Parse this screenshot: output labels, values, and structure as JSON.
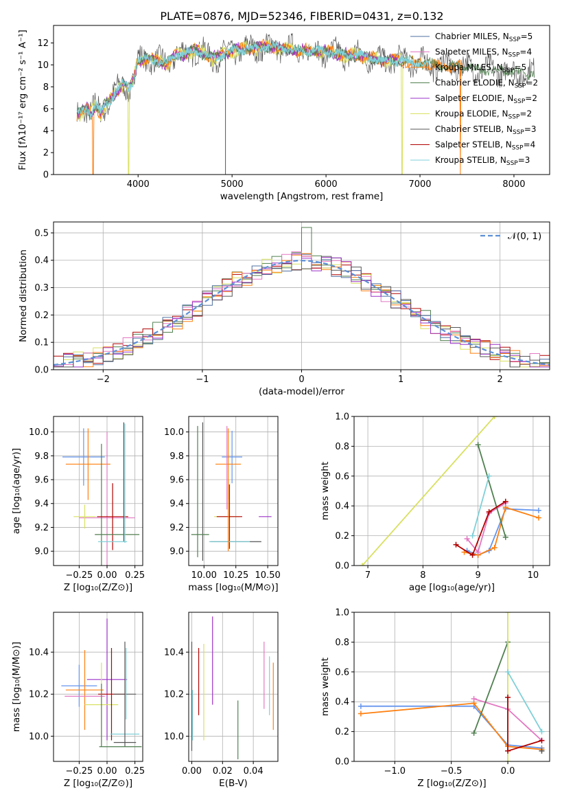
{
  "figure": {
    "title": "PLATE=0876, MJD=52346, FIBERID=0431, z=0.132",
    "colors": {
      "chabrier_miles": "#4c6fa0",
      "salpeter_miles": "#e377c2",
      "kroupa_miles": "#ff7f0e",
      "chabrier_elodie": "#4f7f4f",
      "salpeter_elodie": "#9b30c8",
      "kroupa_elodie": "#d8e060",
      "chabrier_stelib": "#555555",
      "salpeter_stelib": "#b00000",
      "kroupa_stelib": "#7fd0d8",
      "extra_blue": "#6495ed",
      "gauss": "#5b8fd6"
    },
    "legend_entries": [
      {
        "pre": "Chabrier MILES, N",
        "sub": "SSP",
        "post": "=5"
      },
      {
        "pre": "Salpeter MILES, N",
        "sub": "SSP",
        "post": "=4"
      },
      {
        "pre": "Kroupa MILES, N",
        "sub": "SSP",
        "post": "=5"
      },
      {
        "pre": "Chabrier ELODIE, N",
        "sub": "SSP",
        "post": "=2"
      },
      {
        "pre": "Salpeter ELODIE, N",
        "sub": "SSP",
        "post": "=2"
      },
      {
        "pre": "Kroupa ELODIE, N",
        "sub": "SSP",
        "post": "=2"
      },
      {
        "pre": "Chabrier STELIB, N",
        "sub": "SSP",
        "post": "=3"
      },
      {
        "pre": "Salpeter STELIB, N",
        "sub": "SSP",
        "post": "=4"
      },
      {
        "pre": "Kroupa STELIB, N",
        "sub": "SSP",
        "post": "=3"
      }
    ],
    "gauss_legend": "𝒩(0, 1)"
  },
  "chart_data": [
    {
      "panel": "spectrum",
      "type": "line",
      "xlabel": "wavelength [Angstrom, rest frame]",
      "ylabel": "Flux [fλ10⁻¹⁷ erg cm⁻² s⁻¹ A⁻¹]",
      "xlim": [
        3100,
        8380
      ],
      "ylim": [
        0,
        13.6
      ],
      "xticks": [
        4000,
        5000,
        6000,
        7000,
        8000
      ],
      "yticks": [
        0,
        2,
        4,
        6,
        8,
        10,
        12
      ],
      "grid": false,
      "legend": "upper-right",
      "x": [
        3350,
        3400,
        3450,
        3500,
        3550,
        3600,
        3650,
        3700,
        3750,
        3800,
        3850,
        3900,
        3950,
        4000,
        4100,
        4200,
        4300,
        4400,
        4500,
        4600,
        4700,
        4800,
        4900,
        5000,
        5200,
        5400,
        5600,
        5800,
        6000,
        6200,
        6400,
        6600,
        6800,
        7000,
        7200,
        7400,
        7600,
        7800,
        8000,
        8200
      ],
      "y": [
        5.5,
        5.7,
        6.1,
        5.6,
        6.3,
        5.6,
        6.4,
        6.8,
        7.4,
        7.9,
        8.3,
        7.9,
        8.6,
        10.4,
        10.6,
        10.4,
        10.1,
        10.9,
        11.0,
        11.4,
        11.0,
        10.6,
        10.9,
        11.3,
        11.5,
        11.7,
        11.4,
        11.3,
        11.2,
        10.9,
        10.8,
        10.4,
        10.4,
        10.2,
        9.9,
        9.9,
        9.6,
        9.5,
        9.3,
        9.2
      ]
    },
    {
      "panel": "residuals",
      "type": "step-histogram",
      "xlabel": "(data-model)/error",
      "ylabel": "Normed distribution",
      "xlim": [
        -2.5,
        2.5
      ],
      "ylim": [
        0,
        0.54
      ],
      "xticks": [
        -2,
        -1,
        0,
        1,
        2
      ],
      "xticklabels": [
        "−2",
        "−1",
        "0",
        "1",
        "2"
      ],
      "yticks": [
        0,
        0.1,
        0.2,
        0.3,
        0.4,
        0.5
      ],
      "yticklabels": [
        "0.0",
        "0.1",
        "0.2",
        "0.3",
        "0.4",
        "0.5"
      ],
      "grid": true,
      "legend": "upper-right",
      "gaussian": {
        "mean": 0,
        "sigma": 1
      }
    },
    {
      "panel": "age-vs-Z",
      "type": "errorbar",
      "xlabel": "Z [log₁₀(Z/Z⊙)]",
      "ylabel": "age  [log₁₀(age/yr)]",
      "xlim": [
        -0.48,
        0.32
      ],
      "ylim": [
        8.88,
        10.13
      ],
      "xticks": [
        -0.25,
        0.0,
        0.25
      ],
      "xticklabels": [
        "−0.25",
        "0.00",
        "0.25"
      ],
      "yticks": [
        9.0,
        9.2,
        9.4,
        9.6,
        9.8,
        10.0
      ],
      "yticklabels": [
        "9.0",
        "9.2",
        "9.4",
        "9.6",
        "9.8",
        "10.0"
      ],
      "grid": true,
      "points": [
        {
          "c": "extra_blue",
          "x": -0.21,
          "xe": 0.19,
          "y": 9.79,
          "ye": 0.24
        },
        {
          "c": "kroupa_miles",
          "x": -0.17,
          "xe": 0.2,
          "y": 9.73,
          "ye": 0.3
        },
        {
          "c": "salpeter_miles",
          "x": 0.0,
          "xe": 0.25,
          "y": 9.28,
          "ye": 0.72
        },
        {
          "c": "kroupa_elodie",
          "x": -0.2,
          "xe": 0.1,
          "y": 9.29,
          "ye": 0.1
        },
        {
          "c": "chabrier_elodie",
          "x": -0.05,
          "xe": 0.0,
          "y": 9.3,
          "ye": 0.6
        },
        {
          "c": "salpeter_stelib",
          "x": 0.05,
          "xe": 0.14,
          "y": 9.29,
          "ye": 0.28
        },
        {
          "c": "chabrier_stelib",
          "x": 0.15,
          "xe": 0.0,
          "y": 9.58,
          "ye": 0.5
        },
        {
          "c": "chabrier_elodie",
          "x": 0.09,
          "xe": 0.2,
          "y": 9.14,
          "ye": 0.0
        },
        {
          "c": "kroupa_stelib",
          "x": 0.05,
          "xe": 0.13,
          "y": 9.08,
          "ye": 0.0
        },
        {
          "c": "kroupa_stelib",
          "x": 0.16,
          "xe": 0.0,
          "y": 9.57,
          "ye": 0.5
        }
      ]
    },
    {
      "panel": "age-vs-mass",
      "type": "errorbar",
      "xlabel": "mass [log₁₀(M/M⊙)]",
      "ylabel": "",
      "xlim": [
        9.88,
        10.58
      ],
      "ylim": [
        8.88,
        10.13
      ],
      "xticks": [
        10.0,
        10.25,
        10.5
      ],
      "xticklabels": [
        "10.00",
        "10.25",
        "10.50"
      ],
      "yticks": [
        9.0,
        9.2,
        9.4,
        9.6,
        9.8,
        10.0
      ],
      "yticklabels": [
        "9.0",
        "9.2",
        "9.4",
        "9.6",
        "9.8",
        "10.0"
      ],
      "grid": true,
      "points": [
        {
          "c": "extra_blue",
          "x": 10.22,
          "xe": 0.08,
          "y": 9.79,
          "ye": 0.22
        },
        {
          "c": "kroupa_miles",
          "x": 10.19,
          "xe": 0.1,
          "y": 9.73,
          "ye": 0.3
        },
        {
          "c": "salpeter_miles",
          "x": 10.18,
          "xe": 0.0,
          "y": 9.7,
          "ye": 0.35
        },
        {
          "c": "chabrier_elodie",
          "x": 9.95,
          "xe": 0.0,
          "y": 9.5,
          "ye": 0.55
        },
        {
          "c": "chabrier_stelib",
          "x": 9.99,
          "xe": 0.0,
          "y": 9.5,
          "ye": 0.58
        },
        {
          "c": "salpeter_elodie",
          "x": 10.48,
          "xe": 0.05,
          "y": 9.29,
          "ye": 0.0
        },
        {
          "c": "kroupa_elodie",
          "x": 10.18,
          "xe": 0.1,
          "y": 9.29,
          "ye": 0.0
        },
        {
          "c": "salpeter_stelib",
          "x": 10.2,
          "xe": 0.1,
          "y": 9.29,
          "ye": 0.27
        },
        {
          "c": "chabrier_elodie",
          "x": 9.97,
          "xe": 0.07,
          "y": 9.14,
          "ye": 0.0
        },
        {
          "c": "chabrier_stelib",
          "x": 10.25,
          "xe": 0.2,
          "y": 9.08,
          "ye": 0.0
        },
        {
          "c": "kroupa_stelib",
          "x": 10.2,
          "xe": 0.16,
          "y": 9.08,
          "ye": 0.0
        },
        {
          "c": "kroupa_miles",
          "x": 10.19,
          "xe": 0.0,
          "y": 9.3,
          "ye": 0.3
        }
      ]
    },
    {
      "panel": "weight-vs-age",
      "type": "line",
      "xlabel": "age  [log₁₀(age/yr)]",
      "ylabel": "mass weight",
      "xlim": [
        6.75,
        10.3
      ],
      "ylim": [
        0,
        1.0
      ],
      "xticks": [
        7,
        8,
        9,
        10
      ],
      "xticklabels": [
        "7",
        "8",
        "9",
        "10"
      ],
      "yticks": [
        0,
        0.2,
        0.4,
        0.6,
        0.8,
        1.0
      ],
      "yticklabels": [
        "0.0",
        "0.2",
        "0.4",
        "0.6",
        "0.8",
        "1.0"
      ],
      "grid": true,
      "series": [
        {
          "c": "extra_blue",
          "x": [
            8.8,
            9.0,
            9.2,
            9.5,
            10.1
          ],
          "y": [
            0.1,
            0.07,
            0.1,
            0.38,
            0.37
          ]
        },
        {
          "c": "kroupa_miles",
          "x": [
            8.75,
            9.0,
            9.3,
            9.5,
            10.1
          ],
          "y": [
            0.09,
            0.07,
            0.12,
            0.39,
            0.32
          ]
        },
        {
          "c": "salpeter_miles",
          "x": [
            8.8,
            9.0,
            9.2,
            9.5
          ],
          "y": [
            0.18,
            0.09,
            0.35,
            0.42
          ]
        },
        {
          "c": "chabrier_elodie",
          "x": [
            9.0,
            9.5
          ],
          "y": [
            0.81,
            0.19
          ]
        },
        {
          "c": "salpeter_stelib",
          "x": [
            8.6,
            8.9,
            9.2,
            9.5
          ],
          "y": [
            0.14,
            0.07,
            0.36,
            0.43
          ]
        },
        {
          "c": "kroupa_stelib",
          "x": [
            8.9,
            9.2
          ],
          "y": [
            0.2,
            0.6
          ]
        },
        {
          "c": "kroupa_elodie",
          "x": [
            6.9,
            9.3
          ],
          "y": [
            0.0,
            1.0
          ]
        }
      ]
    },
    {
      "panel": "mass-vs-Z",
      "type": "errorbar",
      "xlabel": "Z [log₁₀(Z/Z⊙)]",
      "ylabel": "mass [log₁₀(M/M⊙)]",
      "xlim": [
        -0.48,
        0.32
      ],
      "ylim": [
        9.88,
        10.59
      ],
      "xticks": [
        -0.25,
        0.0,
        0.25
      ],
      "xticklabels": [
        "−0.25",
        "0.00",
        "0.25"
      ],
      "yticks": [
        10.0,
        10.2,
        10.4
      ],
      "yticklabels": [
        "10.0",
        "10.2",
        "10.4"
      ],
      "grid": true,
      "points": [
        {
          "c": "salpeter_elodie",
          "x": 0.0,
          "xe": 0.18,
          "y": 10.27,
          "ye": 0.29
        },
        {
          "c": "extra_blue",
          "x": -0.25,
          "xe": 0.16,
          "y": 10.24,
          "ye": 0.1
        },
        {
          "c": "kroupa_miles",
          "x": -0.2,
          "xe": 0.17,
          "y": 10.22,
          "ye": 0.19
        },
        {
          "c": "salpeter_miles",
          "x": -0.2,
          "xe": 0.18,
          "y": 10.19,
          "ye": 0.0
        },
        {
          "c": "salpeter_stelib",
          "x": 0.05,
          "xe": 0.13,
          "y": 10.2,
          "ye": 0.0
        },
        {
          "c": "kroupa_elodie",
          "x": -0.05,
          "xe": 0.15,
          "y": 10.15,
          "ye": 0.2
        },
        {
          "c": "chabrier_elodie",
          "x": -0.05,
          "xe": 0.0,
          "y": 10.1,
          "ye": 0.15
        },
        {
          "c": "salpeter_stelib",
          "x": 0.04,
          "xe": 0.0,
          "y": 10.2,
          "ye": 0.22
        },
        {
          "c": "kroupa_stelib",
          "x": 0.16,
          "xe": 0.13,
          "y": 10.01,
          "ye": 0.0
        },
        {
          "c": "chabrier_stelib",
          "x": 0.16,
          "xe": 0.1,
          "y": 10.2,
          "ye": 0.25
        },
        {
          "c": "chabrier_elodie",
          "x": 0.12,
          "xe": 0.19,
          "y": 9.95,
          "ye": 0.0
        },
        {
          "c": "chabrier_stelib",
          "x": 0.16,
          "xe": 0.1,
          "y": 9.97,
          "ye": 0.0
        },
        {
          "c": "kroupa_stelib",
          "x": 0.17,
          "xe": 0.0,
          "y": 10.25,
          "ye": 0.17
        }
      ]
    },
    {
      "panel": "mass-vs-EBV",
      "type": "errorbar",
      "xlabel": "E(B-V)",
      "ylabel": "",
      "xlim": [
        -0.002,
        0.056
      ],
      "ylim": [
        9.88,
        10.59
      ],
      "xticks": [
        0.0,
        0.02,
        0.04
      ],
      "xticklabels": [
        "0.00",
        "0.02",
        "0.04"
      ],
      "yticks": [
        10.0,
        10.2,
        10.4
      ],
      "yticklabels": [
        "10.0",
        "10.2",
        "10.4"
      ],
      "grid": true,
      "points": [
        {
          "c": "chabrier_stelib",
          "x": 0.0,
          "xe": 0.0,
          "y": 10.19,
          "ye": 0.26
        },
        {
          "c": "kroupa_stelib",
          "x": 0.0005,
          "xe": 0.0,
          "y": 10.1,
          "ye": 0.12
        },
        {
          "c": "salpeter_stelib",
          "x": 0.0045,
          "xe": 0.0,
          "y": 10.26,
          "ye": 0.16
        },
        {
          "c": "kroupa_elodie",
          "x": 0.0078,
          "xe": 0.0,
          "y": 10.21,
          "ye": 0.23
        },
        {
          "c": "salpeter_elodie",
          "x": 0.0135,
          "xe": 0.0,
          "y": 10.36,
          "ye": 0.21
        },
        {
          "c": "chabrier_elodie",
          "x": 0.03,
          "xe": 0.0,
          "y": 10.03,
          "ye": 0.14
        },
        {
          "c": "salpeter_miles",
          "x": 0.047,
          "xe": 0.0,
          "y": 10.29,
          "ye": 0.16
        },
        {
          "c": "kroupa_stelib",
          "x": 0.0505,
          "xe": 0.0,
          "y": 10.24,
          "ye": 0.14
        },
        {
          "c": "kroupa_miles",
          "x": 0.053,
          "xe": 0.0,
          "y": 10.19,
          "ye": 0.16
        }
      ]
    },
    {
      "panel": "weight-vs-Z",
      "type": "line",
      "xlabel": "Z [log₁₀(Z/Z⊙)]",
      "ylabel": "mass weight",
      "xlim": [
        -1.36,
        0.37
      ],
      "ylim": [
        0,
        1.0
      ],
      "xticks": [
        -1.0,
        -0.5,
        0.0
      ],
      "xticklabels": [
        "−1.0",
        "−0.5",
        "0.0"
      ],
      "yticks": [
        0,
        0.2,
        0.4,
        0.6,
        0.8,
        1.0
      ],
      "yticklabels": [
        "0.0",
        "0.2",
        "0.4",
        "0.6",
        "0.8",
        "1.0"
      ],
      "grid": true,
      "series": [
        {
          "c": "extra_blue",
          "x": [
            -1.3,
            -0.3,
            0.0,
            0.3
          ],
          "y": [
            0.37,
            0.37,
            0.11,
            0.09
          ]
        },
        {
          "c": "kroupa_miles",
          "x": [
            -1.3,
            -0.3,
            0.0,
            0.3
          ],
          "y": [
            0.32,
            0.39,
            0.1,
            0.08
          ]
        },
        {
          "c": "salpeter_miles",
          "x": [
            -0.3,
            0.0,
            0.3
          ],
          "y": [
            0.42,
            0.35,
            0.14
          ]
        },
        {
          "c": "chabrier_elodie",
          "x": [
            -0.3,
            0.0
          ],
          "y": [
            0.19,
            0.8
          ]
        },
        {
          "c": "kroupa_elodie",
          "x": [
            0.0,
            0.0
          ],
          "y": [
            0.0,
            1.0
          ]
        },
        {
          "c": "kroupa_stelib",
          "x": [
            0.0,
            0.3
          ],
          "y": [
            0.6,
            0.2
          ]
        },
        {
          "c": "salpeter_stelib",
          "x": [
            0.0,
            0.0,
            0.3
          ],
          "y": [
            0.43,
            0.07,
            0.14
          ]
        },
        {
          "c": "chabrier_stelib",
          "x": [
            0.3
          ],
          "y": [
            0.07
          ]
        }
      ]
    }
  ]
}
